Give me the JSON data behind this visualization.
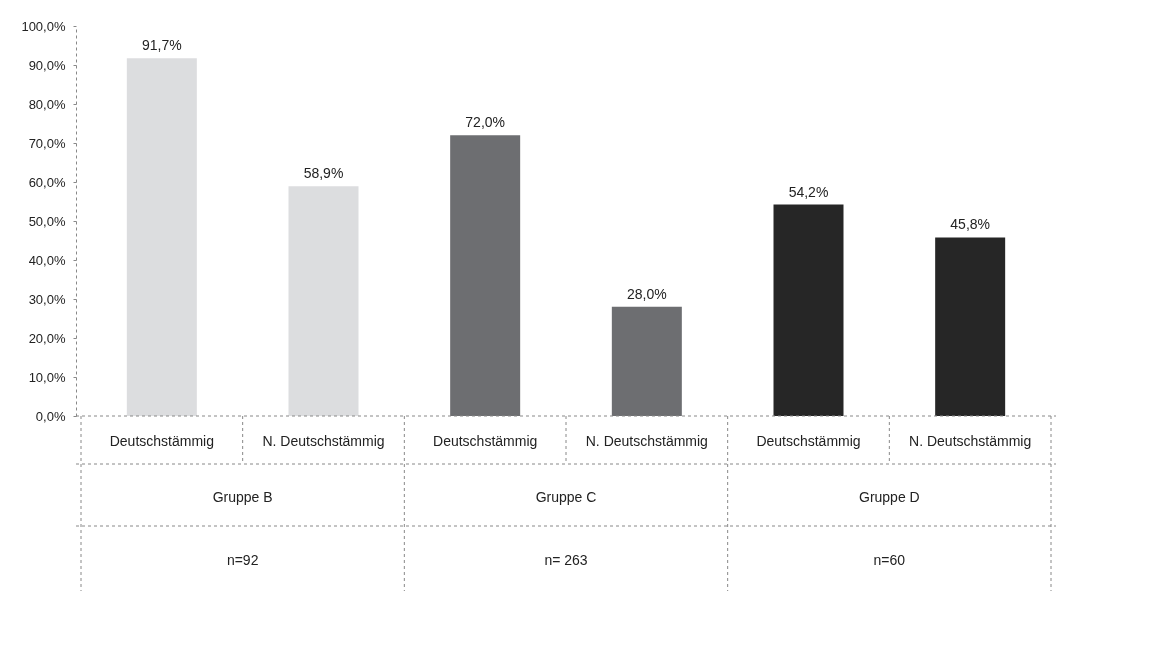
{
  "chart_data": {
    "type": "bar",
    "categories": [
      "Deutschstämmig",
      "N. Deutschstämmig",
      "Deutschstämmig",
      "N. Deutschstämmig",
      "Deutschstämmig",
      "N. Deutschstämmig"
    ],
    "values": [
      91.7,
      58.9,
      72.0,
      28.0,
      54.2,
      45.8
    ],
    "value_labels": [
      "91,7%",
      "58,9%",
      "72,0%",
      "28,0%",
      "54,2%",
      "45,8%"
    ],
    "colors": [
      "#dcdddf",
      "#dcdddf",
      "#6d6e71",
      "#6d6e71",
      "#262626",
      "#262626"
    ],
    "ylim": [
      0,
      100
    ],
    "yticks": [
      {
        "value": 0,
        "label": "0,0%"
      },
      {
        "value": 10,
        "label": "10,0%"
      },
      {
        "value": 20,
        "label": "20,0%"
      },
      {
        "value": 30,
        "label": "30,0%"
      },
      {
        "value": 40,
        "label": "40,0%"
      },
      {
        "value": 50,
        "label": "50,0%"
      },
      {
        "value": 60,
        "label": "60,0%"
      },
      {
        "value": 70,
        "label": "70,0%"
      },
      {
        "value": 80,
        "label": "80,0%"
      },
      {
        "value": 90,
        "label": "90,0%"
      },
      {
        "value": 100,
        "label": "100,0%"
      }
    ],
    "annotations": [
      "Gruppe B",
      "n=92",
      "Gruppe C",
      "n= 263",
      "Gruppe D",
      "n=60"
    ],
    "grid": false
  }
}
